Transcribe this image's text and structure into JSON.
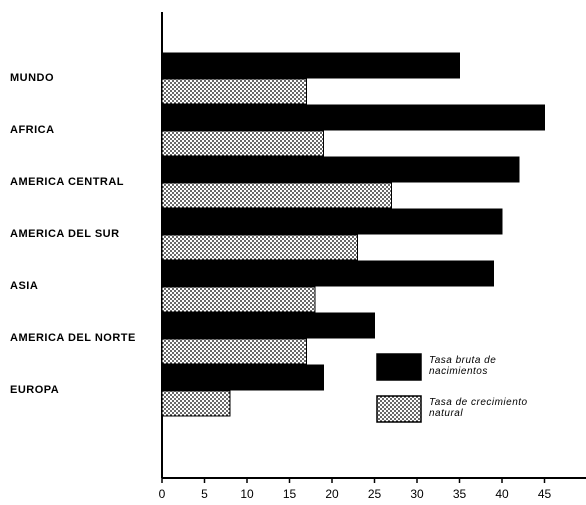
{
  "chart_data": {
    "type": "bar",
    "orientation": "horizontal",
    "categories": [
      "MUNDO",
      "AFRICA",
      "AMERICA CENTRAL",
      "AMERICA DEL SUR",
      "ASIA",
      "AMERICA DEL NORTE",
      "EUROPA"
    ],
    "series": [
      {
        "name": "Tasa bruta de nacimientos",
        "values": [
          35,
          45,
          42,
          40,
          39,
          25,
          19
        ],
        "color": "#000000",
        "pattern": "solid"
      },
      {
        "name": "Tasa de crecimiento natural",
        "values": [
          17,
          19,
          27,
          23,
          18,
          17,
          8
        ],
        "color": "#000000",
        "pattern": "dotted"
      }
    ],
    "legend": {
      "placement": "lower-right",
      "entries": [
        {
          "line1": "Tasa bruta de",
          "line2": "nacimientos",
          "pattern": "solid"
        },
        {
          "line1": "Tasa de crecimiento",
          "line2": "natural",
          "pattern": "dotted"
        }
      ]
    },
    "x_ticks": [
      "0",
      "5",
      "10",
      "15",
      "20",
      "25",
      "30",
      "35",
      "40",
      "45"
    ],
    "xlim": [
      0,
      50
    ],
    "title": "",
    "xlabel": "",
    "ylabel": "",
    "grid": false
  }
}
